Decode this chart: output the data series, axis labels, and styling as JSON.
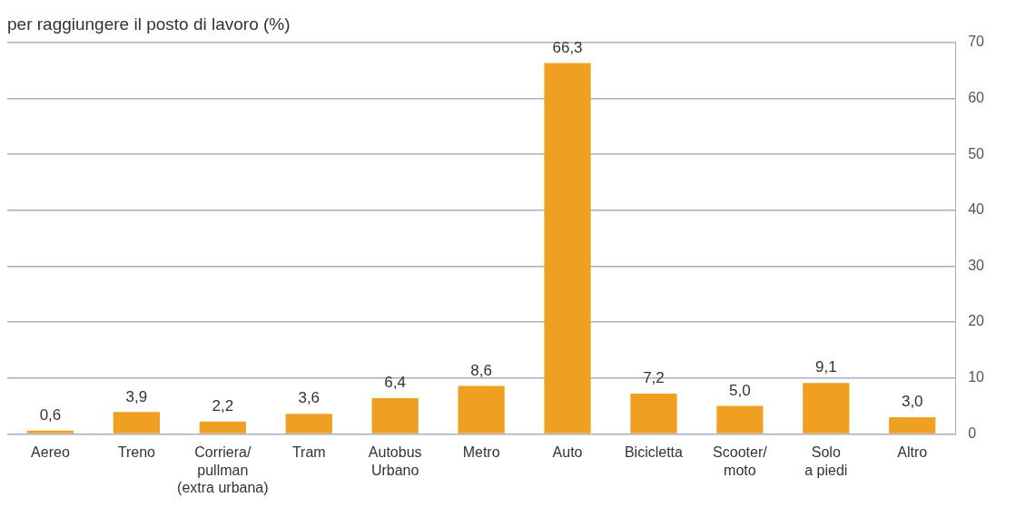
{
  "chart_data": {
    "type": "bar",
    "title": "per raggiungere il posto di lavoro (%)",
    "categories": [
      "Aereo",
      "Treno",
      "Corriera/\npullman\n(extra urbana)",
      "Tram",
      "Autobus\nUrbano",
      "Metro",
      "Auto",
      "Bicicletta",
      "Scooter/\nmoto",
      "Solo\na piedi",
      "Altro"
    ],
    "values": [
      0.6,
      3.9,
      2.2,
      3.6,
      6.4,
      8.6,
      66.3,
      7.2,
      5.0,
      9.1,
      3.0
    ],
    "value_labels": [
      "0,6",
      "3,9",
      "2,2",
      "3,6",
      "6,4",
      "8,6",
      "66,3",
      "7,2",
      "5,0",
      "9,1",
      "3,0"
    ],
    "color": "#f0a020",
    "ylim": [
      0,
      70
    ],
    "yticks": [
      0,
      10,
      20,
      30,
      40,
      50,
      60,
      70
    ],
    "grid": "y",
    "legend": false
  }
}
